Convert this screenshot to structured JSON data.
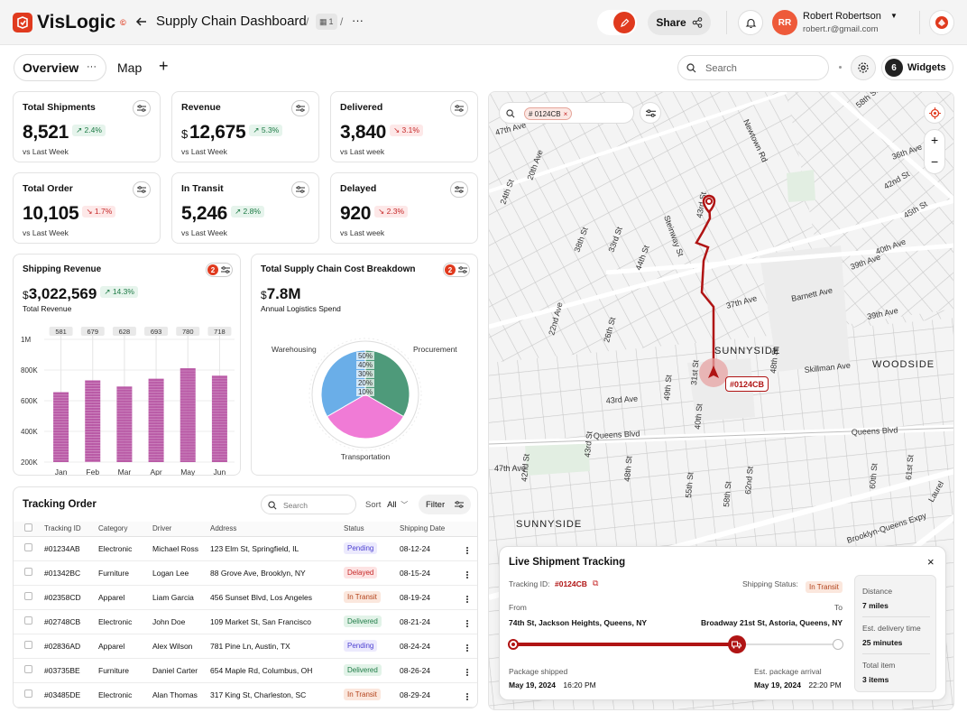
{
  "app": {
    "name": "VisLogic",
    "mark": "©"
  },
  "header": {
    "title": "Supply Chain Dashboard",
    "sep": "/",
    "badge": "1",
    "sep2": "/",
    "more": "···",
    "share_label": "Share"
  },
  "user": {
    "initials": "RR",
    "name": "Robert Robertson",
    "email": "robert.r@gmail.com"
  },
  "tabs": {
    "overview": "Overview",
    "map": "Map",
    "add": "+",
    "more": "···"
  },
  "toolbar": {
    "search_placeholder": "Search",
    "widgets_count": "6",
    "widgets_label": "Widgets"
  },
  "kpis": [
    {
      "title": "Total Shipments",
      "value": "8,521",
      "change": "2.4%",
      "dir": "up",
      "sub": "vs Last Week"
    },
    {
      "title": "Revenue",
      "currency": "$",
      "value": "12,675",
      "change": "5.3%",
      "dir": "up",
      "sub": "vs Last Week"
    },
    {
      "title": "Delivered",
      "value": "3,840",
      "change": "3.1%",
      "dir": "down",
      "sub": "vs Last week"
    },
    {
      "title": "Total Order",
      "value": "10,105",
      "change": "1.7%",
      "dir": "down",
      "sub": "vs Last Week"
    },
    {
      "title": "In Transit",
      "value": "5,246",
      "change": "2.8%",
      "dir": "up",
      "sub": "vs Last Week"
    },
    {
      "title": "Delayed",
      "value": "920",
      "change": "2.3%",
      "dir": "down",
      "sub": "vs Last week"
    }
  ],
  "shipping_revenue": {
    "title": "Shipping Revenue",
    "badge": "2",
    "currency": "$",
    "value": "3,022,569",
    "change": "14.3%",
    "sub": "Total Revenue"
  },
  "cost_breakdown": {
    "title": "Total Supply Chain Cost Breakdown",
    "badge": "2",
    "currency": "$",
    "value": "7.8M",
    "sub": "Annual Logistics Spend"
  },
  "chart_data": [
    {
      "type": "bar",
      "title": "Shipping Revenue",
      "categories": [
        "Jan",
        "Feb",
        "Mar",
        "Apr",
        "May",
        "Jun"
      ],
      "values": [
        581,
        679,
        628,
        693,
        780,
        718
      ],
      "yticks": [
        "1M",
        "800K",
        "600K",
        "400K",
        "200K"
      ],
      "color": "#b0449b"
    },
    {
      "type": "pie",
      "title": "Total Supply Chain Cost Breakdown",
      "labels": [
        "Procurement",
        "Transportation",
        "Warehousing"
      ],
      "values": [
        33.3,
        33.3,
        33.3
      ],
      "colors": [
        "#4e9a7a",
        "#f07bd6",
        "#6aaee8"
      ],
      "radial_ticks": [
        "50%",
        "40%",
        "30%",
        "20%",
        "10%"
      ]
    }
  ],
  "tracking": {
    "title": "Tracking Order",
    "search_placeholder": "Search",
    "sort_label": "Sort",
    "sort_value": "All",
    "filter_label": "Filter",
    "columns": [
      "Tracking ID",
      "Category",
      "Driver",
      "Address",
      "Status",
      "Shipping Date"
    ],
    "rows": [
      {
        "id": "#01234AB",
        "category": "Electronic",
        "driver": "Michael Ross",
        "address": "123 Elm St, Springfield, IL",
        "status": "Pending",
        "date": "08-12-24"
      },
      {
        "id": "#01342BC",
        "category": "Furniture",
        "driver": "Logan Lee",
        "address": "88 Grove Ave, Brooklyn, NY",
        "status": "Delayed",
        "date": "08-15-24"
      },
      {
        "id": "#02358CD",
        "category": "Apparel",
        "driver": "Liam Garcia",
        "address": "456 Sunset Blvd, Los Angeles",
        "status": "In Transit",
        "date": "08-19-24"
      },
      {
        "id": "#02748CB",
        "category": "Electronic",
        "driver": "John Doe",
        "address": "109 Market St, San Francisco",
        "status": "Delivered",
        "date": "08-21-24"
      },
      {
        "id": "#02836AD",
        "category": "Apparel",
        "driver": "Alex Wilson",
        "address": "781 Pine Ln, Austin, TX",
        "status": "Pending",
        "date": "08-24-24"
      },
      {
        "id": "#03735BE",
        "category": "Furniture",
        "driver": "Daniel Carter",
        "address": "654 Maple Rd, Columbus, OH",
        "status": "Delivered",
        "date": "08-26-24"
      },
      {
        "id": "#03485DE",
        "category": "Electronic",
        "driver": "Alan Thomas",
        "address": "317 King St, Charleston, SC",
        "status": "In Transit",
        "date": "08-29-24"
      }
    ]
  },
  "map": {
    "search_chip": "# 0124CB",
    "marker_label": "#0124CB",
    "zoom_in": "+",
    "zoom_out": "−",
    "streets": [
      "47th Ave",
      "43rd Ave",
      "Queens Blvd",
      "Queens Blvd",
      "39th Ave",
      "Barnett Ave",
      "37th Ave",
      "Skillman Ave",
      "36th Ave",
      "40th Ave",
      "39th Ave",
      "47th Ave",
      "Brooklyn-Queens Expy",
      "Laurel",
      "Newtown Rd",
      "Steinway St",
      "43rd St",
      "38th St",
      "33rd St",
      "44th St",
      "24th St",
      "58th St",
      "42nd St",
      "45th St",
      "20th Ave",
      "22nd Ave",
      "26th St",
      "31st St",
      "48th St",
      "49th St",
      "40th St",
      "42nd St",
      "43rd St",
      "48th St",
      "55th St",
      "58th St",
      "62nd St",
      "60th St",
      "61st St"
    ],
    "places": [
      "SUNNYSIDE",
      "WOODSIDE",
      "SUNNYSIDE"
    ]
  },
  "live_tracking": {
    "title": "Live Shipment Tracking",
    "tracking_label": "Tracking ID:",
    "tracking_id": "#0124CB",
    "status_label": "Shipping Status:",
    "status": "In Transit",
    "from_label": "From",
    "to_label": "To",
    "from": "74th St, Jackson Heights, Queens, NY",
    "to": "Broadway 21st St, Astoria, Queens, NY",
    "progress": 0.69,
    "shipped_label": "Package shipped",
    "shipped_date": "May 19, 2024",
    "shipped_time": "16:20 PM",
    "arrival_label": "Est. package arrival",
    "arrival_date": "May 19, 2024",
    "arrival_time": "22:20 PM",
    "distance_label": "Distance",
    "distance": "7 miles",
    "eta_label": "Est. delivery time",
    "eta": "25 minutes",
    "items_label": "Total item",
    "items": "3 items"
  }
}
